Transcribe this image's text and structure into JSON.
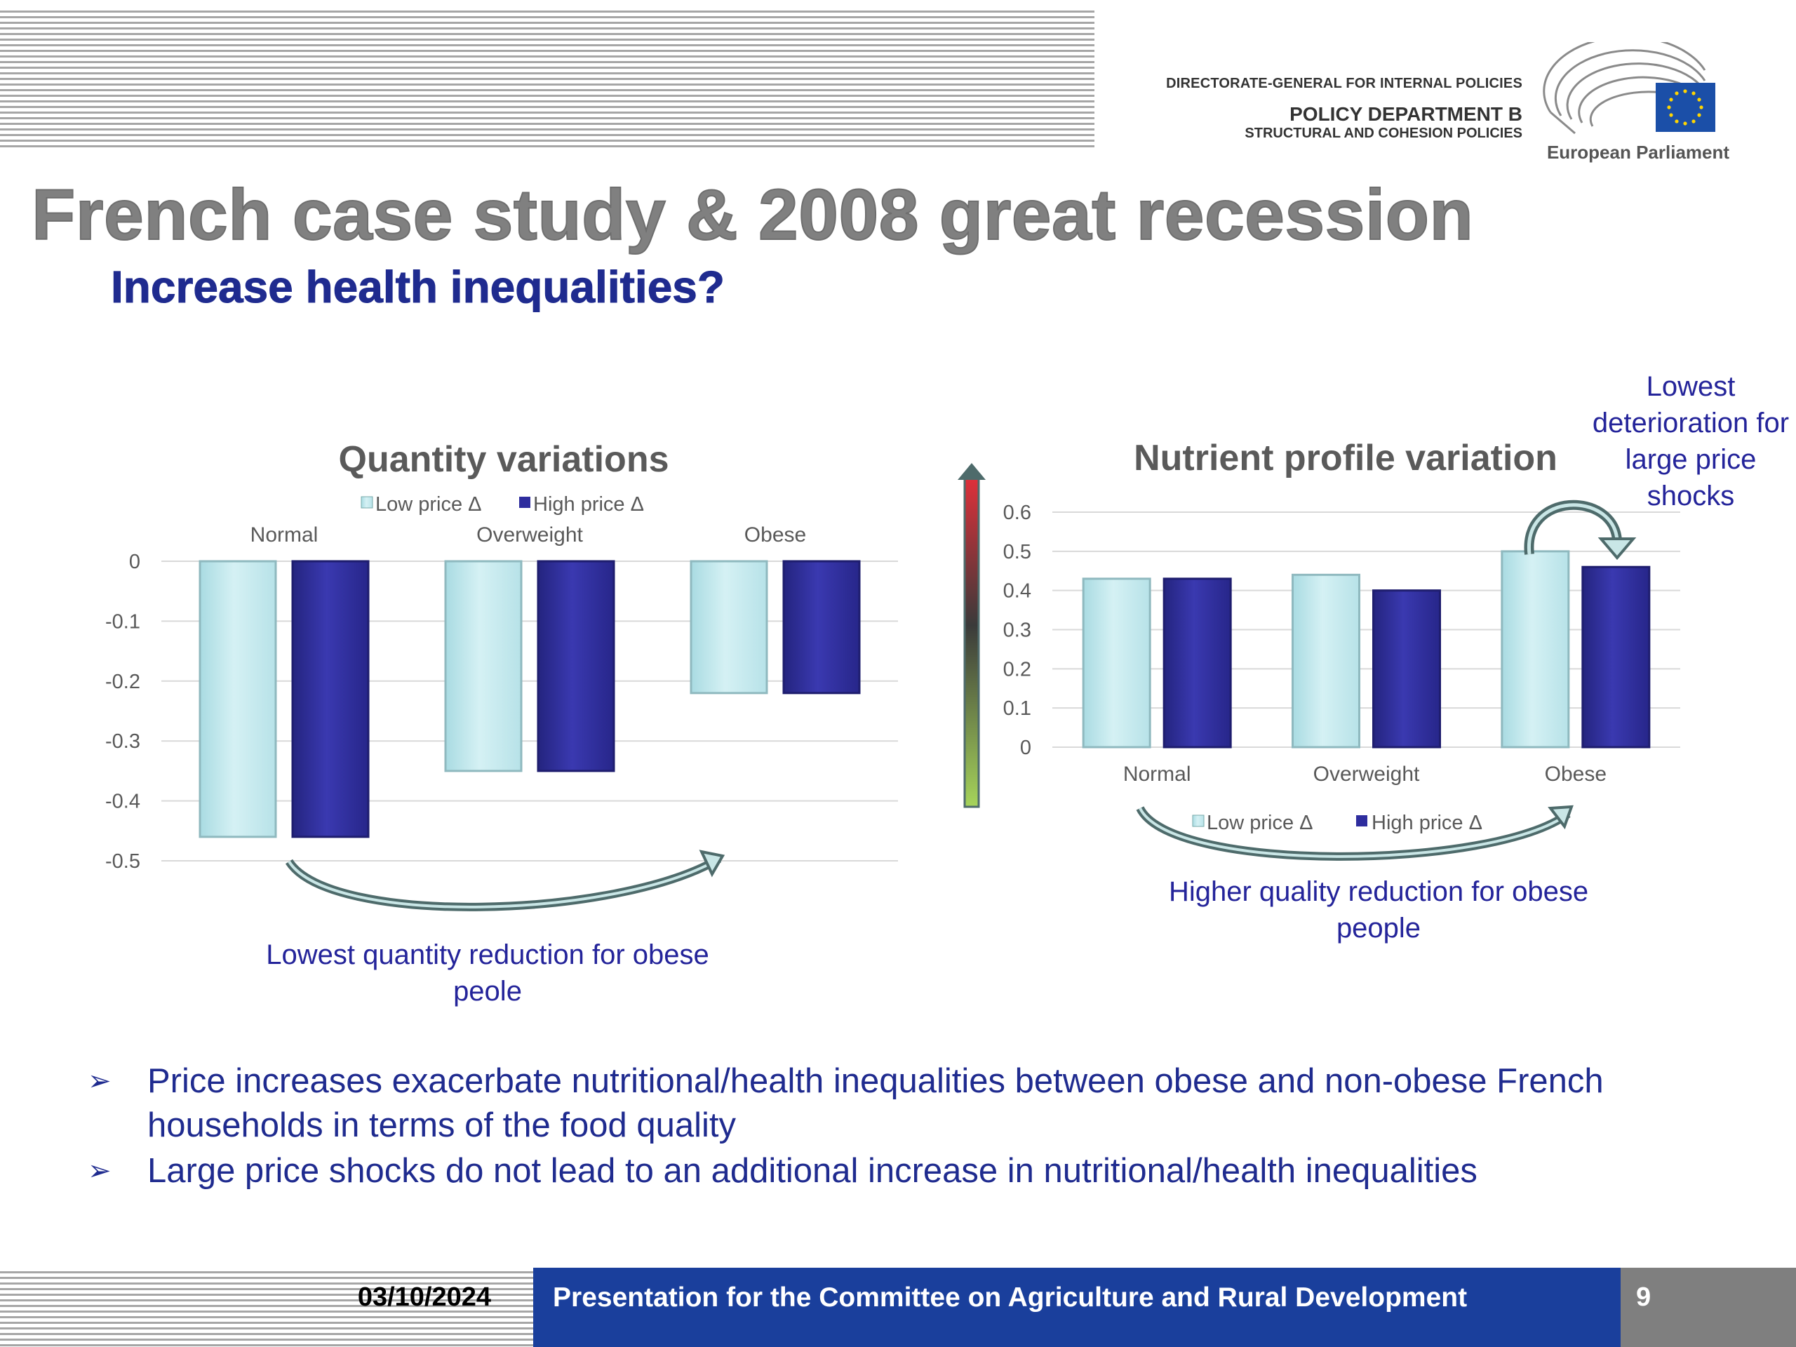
{
  "header": {
    "dg_line": "DIRECTORATE-GENERAL FOR INTERNAL POLICIES",
    "department": "POLICY DEPARTMENT B",
    "department_sub": "STRUCTURAL AND COHESION POLICIES",
    "logo_caption": "European Parliament"
  },
  "title": "French case study & 2008 great recession",
  "subtitle": "Increase health inequalities?",
  "colors": {
    "low_price": "#c4e9ee",
    "high_price": "#2e2d9e",
    "title_gray": "#808080",
    "text_blue": "#1f2b8f",
    "footer_blue": "#1a3f9c"
  },
  "chart_data": [
    {
      "type": "bar",
      "title": "Quantity variations",
      "categories": [
        "Normal",
        "Overweight",
        "Obese"
      ],
      "series": [
        {
          "name": "Low  price Δ",
          "values": [
            -0.46,
            -0.35,
            -0.22
          ]
        },
        {
          "name": "High price  Δ",
          "values": [
            -0.46,
            -0.35,
            -0.22
          ]
        }
      ],
      "ylim": [
        -0.5,
        0
      ],
      "yticks": [
        "0",
        "-0.1",
        "-0.2",
        "-0.3",
        "-0.4",
        "-0.5"
      ],
      "category_axis": "top",
      "legend": "top",
      "grid": true
    },
    {
      "type": "bar",
      "title": "Nutrient profile variation",
      "categories": [
        "Normal",
        "Overweight",
        "Obese"
      ],
      "series": [
        {
          "name": "Low  price Δ",
          "values": [
            0.43,
            0.44,
            0.5
          ]
        },
        {
          "name": "High price  Δ",
          "values": [
            0.43,
            0.4,
            0.46
          ]
        }
      ],
      "ylim": [
        0,
        0.6
      ],
      "yticks": [
        "0",
        "0.1",
        "0.2",
        "0.3",
        "0.4",
        "0.5",
        "0.6"
      ],
      "legend": "bottom",
      "grid": true
    }
  ],
  "annotations": {
    "left": "Lowest quantity reduction for obese peole",
    "right": "Higher quality reduction for obese people",
    "top_right": "Lowest deterioration for large price shocks"
  },
  "bullets": [
    "Price increases exacerbate nutritional/health inequalities between obese and non-obese French households in terms of  the food quality",
    "Large price shocks do not lead to an additional increase in nutritional/health inequalities"
  ],
  "footer": {
    "date": "03/10/2024",
    "text": "Presentation for the Committee on Agriculture and Rural Development",
    "page": "9"
  }
}
